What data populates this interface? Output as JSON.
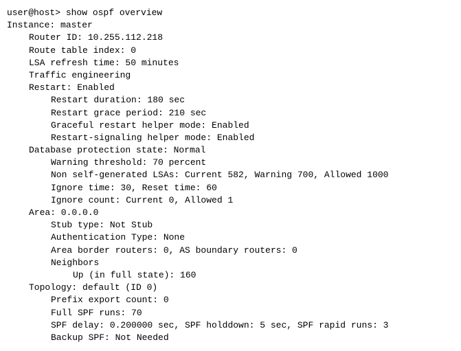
{
  "prompt": "user@host> show ospf overview",
  "blank": " ",
  "instance": "Instance: master",
  "routerId": "Router ID: 10.255.112.218",
  "routeTableIndex": "Route table index: 0",
  "lsaRefresh": "LSA refresh time: 50 minutes",
  "trafficEng": "Traffic engineering",
  "restart": "Restart: Enabled",
  "restartDuration": "Restart duration: 180 sec",
  "restartGrace": "Restart grace period: 210 sec",
  "gracefulHelper": "Graceful restart helper mode: Enabled",
  "signalingHelper": "Restart-signaling helper mode: Enabled",
  "dbProtection": "Database protection state: Normal",
  "warningThreshold": "Warning threshold: 70 percent",
  "nonSelfLsas": "Non self-generated LSAs: Current 582, Warning 700, Allowed 1000",
  "ignoreTime": "Ignore time: 30, Reset time: 60",
  "ignoreCount": "Ignore count: Current 0, Allowed 1",
  "area": "Area: 0.0.0.0",
  "stubType": "Stub type: Not Stub",
  "authType": "Authentication Type: None",
  "abr": "Area border routers: 0, AS boundary routers: 0",
  "neighbors": "Neighbors",
  "upFull": "Up (in full state): 160",
  "topology": "Topology: default (ID 0)",
  "prefixExport": "Prefix export count: 0",
  "fullSpf": "Full SPF runs: 70",
  "spfDelay": "SPF delay: 0.200000 sec, SPF holddown: 5 sec, SPF rapid runs: 3",
  "backupSpf": "Backup SPF: Not Needed"
}
